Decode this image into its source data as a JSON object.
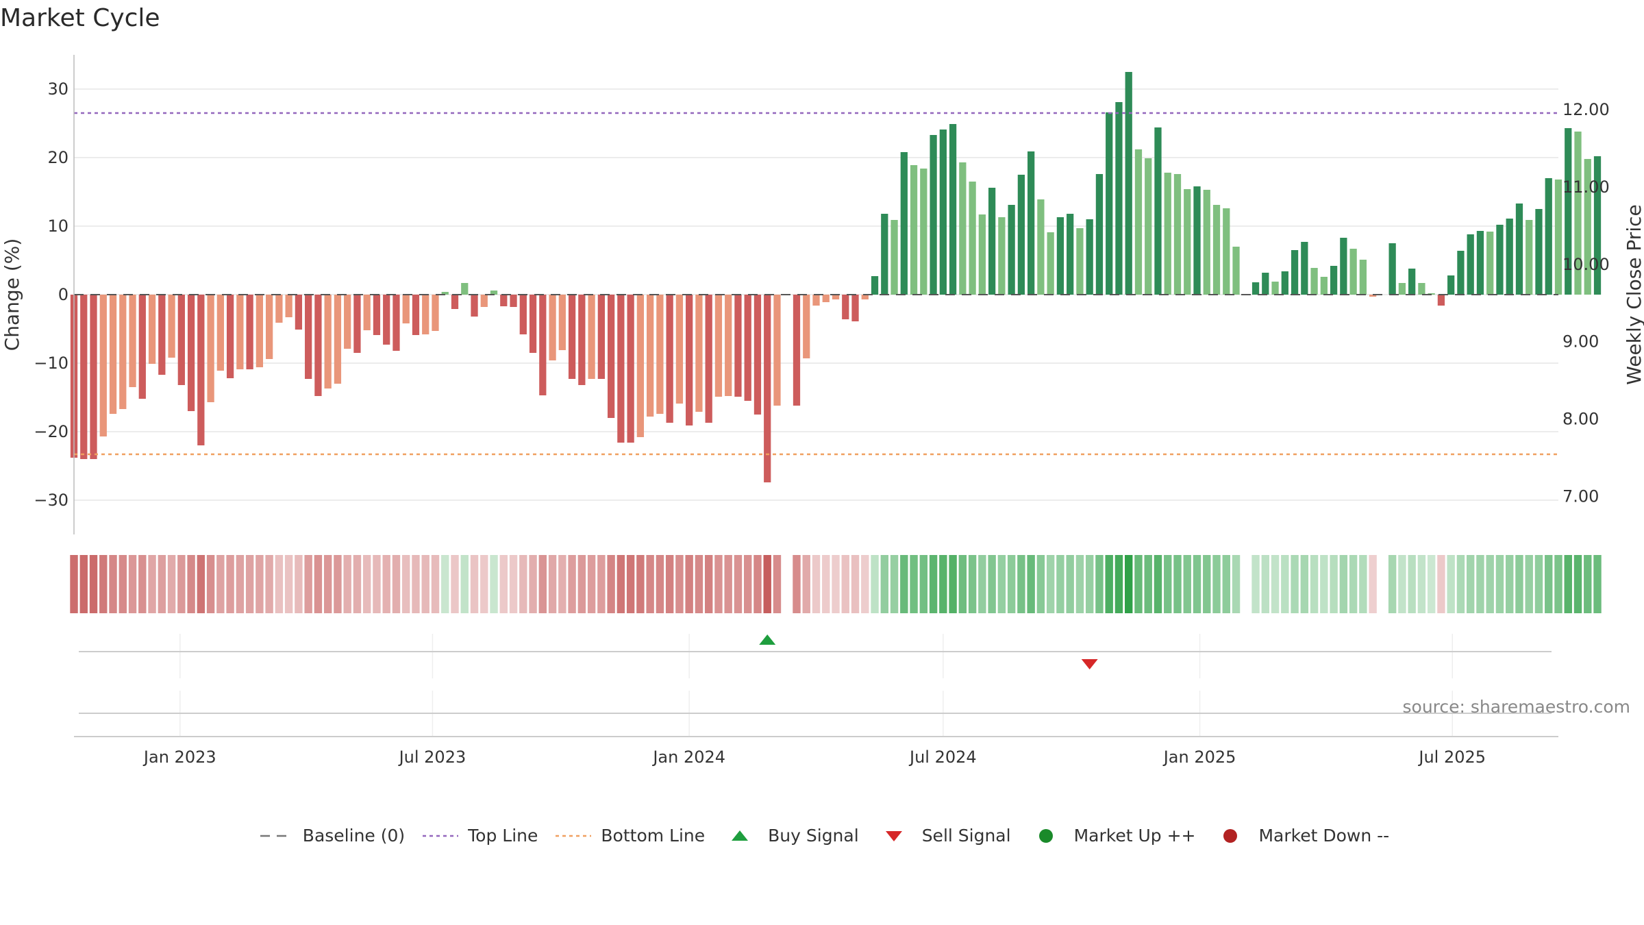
{
  "chart_data": {
    "title": "Market Cycle",
    "type": "bar",
    "ylabel": "Change (%)",
    "y2label": "Weekly Close Price",
    "ylim": [
      -35,
      35
    ],
    "y2lim": [
      6.5,
      12.7
    ],
    "yticks": [
      30,
      20,
      10,
      0,
      -10,
      -20,
      -30
    ],
    "ytick_labels": [
      "30",
      "20",
      "10",
      "0",
      "−10",
      "−20",
      "−30"
    ],
    "y2ticks": [
      12,
      11,
      10,
      9,
      8,
      7
    ],
    "y2tick_labels": [
      "12.00",
      "11.00",
      "10.00",
      "9.00",
      "8.00",
      "7.00"
    ],
    "x_range": [
      "2022-10-17",
      "2025-09-15"
    ],
    "xticks": [
      "2023-01-01",
      "2023-07-01",
      "2024-01-01",
      "2024-07-01",
      "2025-01-01",
      "2025-07-01"
    ],
    "xtick_labels": [
      "Jan 2023",
      "Jul 2023",
      "Jan 2024",
      "Jul 2024",
      "Jan 2025",
      "Jul 2025"
    ],
    "top_line": 26.5,
    "bottom_line": -23.3,
    "start_week": "2022-10-17",
    "values": [
      -23.8,
      -24,
      -24,
      -20.7,
      -17.4,
      -16.7,
      -13.5,
      -15.2,
      -10.1,
      -11.7,
      -9.2,
      -13.2,
      -17,
      -22,
      -15.7,
      -11.1,
      -12.2,
      -10.9,
      -10.9,
      -10.6,
      -9.4,
      -4.1,
      -3.3,
      -5.1,
      -12.3,
      -14.8,
      -13.7,
      -13,
      -7.9,
      -8.5,
      -5.2,
      -5.9,
      -7.3,
      -8.2,
      -4.2,
      -5.9,
      -5.8,
      -5.3,
      0.4,
      -2.1,
      1.7,
      -3.2,
      -1.8,
      0.6,
      -1.7,
      -1.8,
      -5.8,
      -8.5,
      -14.7,
      -9.6,
      -8.1,
      -12.3,
      -13.2,
      -12.3,
      -12.3,
      -18,
      -21.6,
      -21.6,
      -20.8,
      -17.8,
      -17.4,
      -18.7,
      -15.9,
      -19.1,
      -17.1,
      -18.7,
      -14.9,
      -14.8,
      -14.9,
      -15.5,
      -17.5,
      -27.4,
      -16.2,
      null,
      -16.2,
      -9.3,
      -1.6,
      -1.1,
      -0.7,
      -3.6,
      -3.9,
      -0.7,
      2.7,
      11.8,
      10.9,
      20.8,
      18.9,
      18.4,
      23.3,
      24.1,
      24.9,
      19.3,
      16.5,
      11.7,
      15.6,
      11.3,
      13.1,
      17.5,
      20.9,
      13.9,
      9.1,
      11.3,
      11.8,
      9.7,
      11,
      17.6,
      26.6,
      28.1,
      32.5,
      21.2,
      19.9,
      24.4,
      17.8,
      17.6,
      15.4,
      15.8,
      15.3,
      13.1,
      12.6,
      7,
      null,
      1.8,
      3.2,
      1.9,
      3.4,
      6.5,
      7.7,
      3.9,
      2.6,
      4.2,
      8.3,
      6.7,
      5.1,
      -0.3,
      null,
      7.5,
      1.7,
      3.8,
      1.7,
      0.2,
      -1.6,
      2.8,
      6.4,
      8.8,
      9.3,
      9.2,
      10.2,
      11.1,
      13.3,
      10.9,
      12.5,
      17,
      16.8,
      24.3,
      23.8,
      19.8,
      20.2
    ],
    "buy_signal": {
      "date": "2024-02-26",
      "label": "Buy Signal"
    },
    "sell_signal": {
      "date": "2024-10-14",
      "label": "Sell Signal"
    },
    "legend_placement": "bottom-center",
    "source": "source: sharemaestro.com",
    "legend": [
      {
        "name": "Baseline (0)",
        "symbol": "dash",
        "color": "#777777"
      },
      {
        "name": "Top Line",
        "symbol": "dot-line",
        "color": "#9467bd"
      },
      {
        "name": "Bottom Line",
        "symbol": "dot-line",
        "color": "#f0a060"
      },
      {
        "name": "Buy Signal",
        "symbol": "triangle-up",
        "color": "#1e9e3e"
      },
      {
        "name": "Sell Signal",
        "symbol": "triangle-down",
        "color": "#d62728"
      },
      {
        "name": "Market Up ++",
        "symbol": "circle",
        "color": "#1a8a2a"
      },
      {
        "name": "Market Down --",
        "symbol": "circle",
        "color": "#b22222"
      }
    ],
    "colors": {
      "up_strong": "#2e8b57",
      "up_light": "#7fbf7f",
      "down_strong": "#cd5c5c",
      "down_light": "#e9967a",
      "top_line": "#9467bd",
      "bottom_line": "#f0a060",
      "grid": "#e6e6e6"
    }
  }
}
